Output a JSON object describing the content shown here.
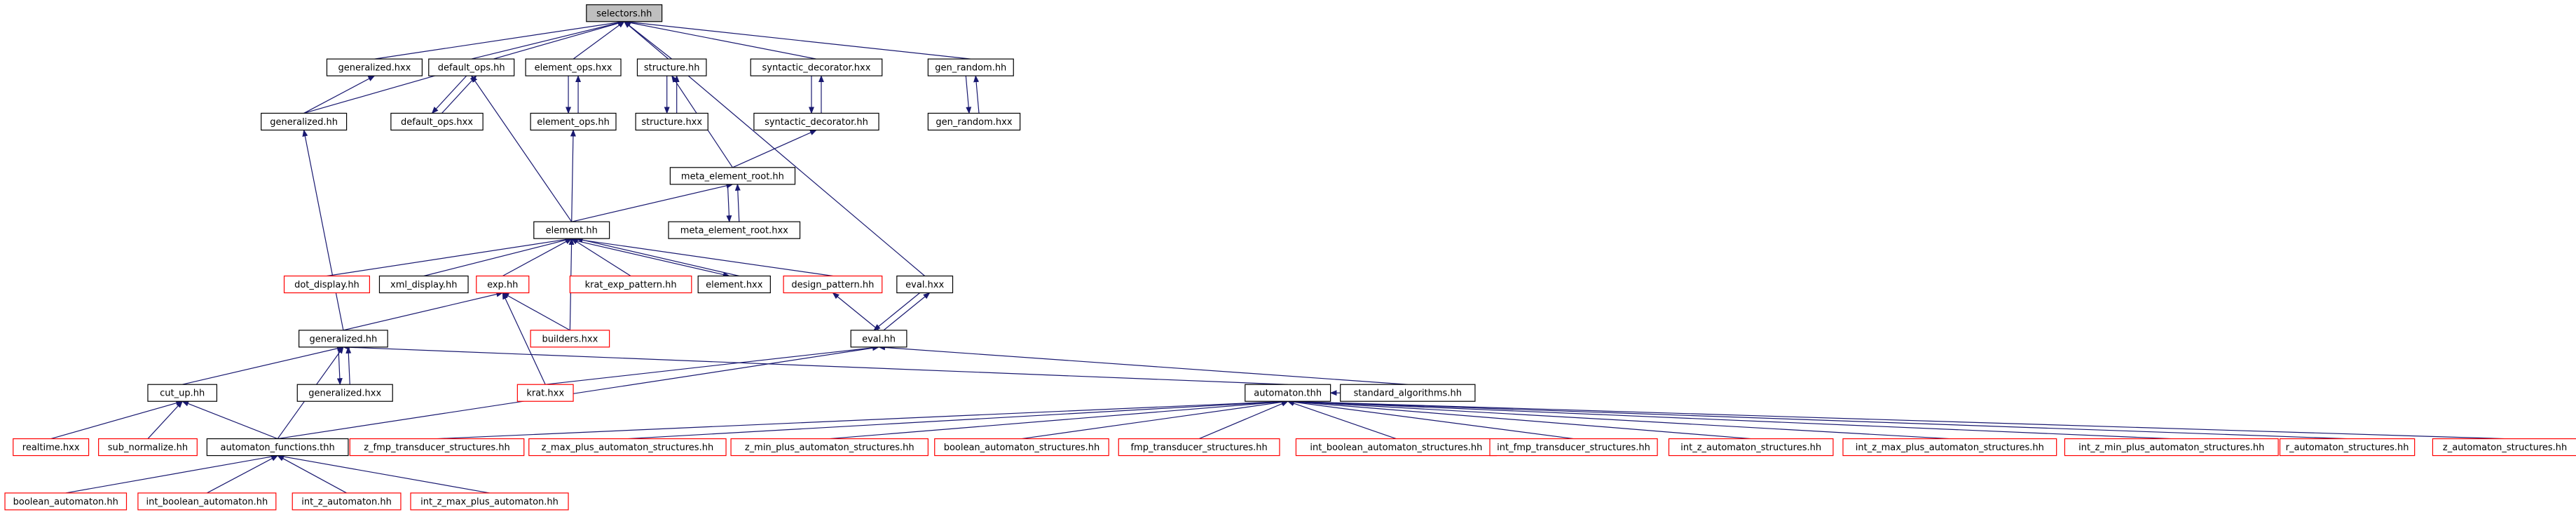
{
  "nodes": [
    {
      "label": "selectors.hh"
    },
    {
      "label": "generalized.hxx"
    },
    {
      "label": "default_ops.hh"
    },
    {
      "label": "element_ops.hxx"
    },
    {
      "label": "structure.hh"
    },
    {
      "label": "syntactic_decorator.hxx"
    },
    {
      "label": "gen_random.hh"
    },
    {
      "label": "generalized.hh"
    },
    {
      "label": "default_ops.hxx"
    },
    {
      "label": "element_ops.hh"
    },
    {
      "label": "structure.hxx"
    },
    {
      "label": "syntactic_decorator.hh"
    },
    {
      "label": "gen_random.hxx"
    },
    {
      "label": "meta_element_root.hh"
    },
    {
      "label": "meta_element_root.hxx"
    },
    {
      "label": "element.hh"
    },
    {
      "label": "dot_display.hh"
    },
    {
      "label": "xml_display.hh"
    },
    {
      "label": "exp.hh"
    },
    {
      "label": "krat_exp_pattern.hh"
    },
    {
      "label": "element.hxx"
    },
    {
      "label": "design_pattern.hh"
    },
    {
      "label": "eval.hxx"
    },
    {
      "label": "generalized.hh"
    },
    {
      "label": "builders.hxx"
    },
    {
      "label": "eval.hh"
    },
    {
      "label": "cut_up.hh"
    },
    {
      "label": "generalized.hxx"
    },
    {
      "label": "krat.hxx"
    },
    {
      "label": "automaton.thh"
    },
    {
      "label": "standard_algorithms.hh"
    },
    {
      "label": "realtime.hxx"
    },
    {
      "label": "sub_normalize.hh"
    },
    {
      "label": "automaton_functions.thh"
    },
    {
      "label": "z_fmp_transducer_structures.hh"
    },
    {
      "label": "z_max_plus_automaton_structures.hh"
    },
    {
      "label": "z_min_plus_automaton_structures.hh"
    },
    {
      "label": "boolean_automaton_structures.hh"
    },
    {
      "label": "fmp_transducer_structures.hh"
    },
    {
      "label": "int_boolean_automaton_structures.hh"
    },
    {
      "label": "int_fmp_transducer_structures.hh"
    },
    {
      "label": "int_z_automaton_structures.hh"
    },
    {
      "label": "int_z_max_plus_automaton_structures.hh"
    },
    {
      "label": "int_z_min_plus_automaton_structures.hh"
    },
    {
      "label": "r_automaton_structures.hh"
    },
    {
      "label": "z_automaton_structures.hh"
    },
    {
      "label": "boolean_automaton.hh"
    },
    {
      "label": "int_boolean_automaton.hh"
    },
    {
      "label": "int_z_automaton.hh"
    },
    {
      "label": "int_z_max_plus_automaton.hh"
    }
  ]
}
